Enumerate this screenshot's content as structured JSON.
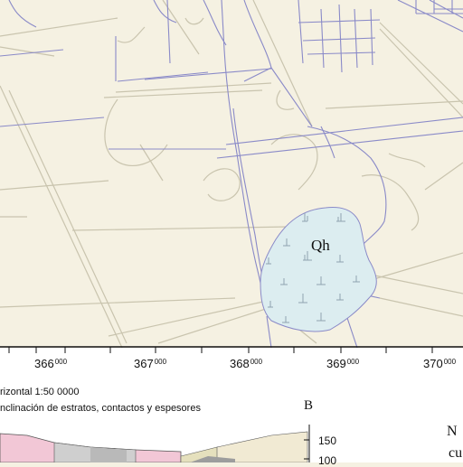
{
  "map": {
    "unit_label": "Qh",
    "easting_ticks": [
      {
        "major": "366",
        "minor": "000"
      },
      {
        "major": "367",
        "minor": "000"
      },
      {
        "major": "368",
        "minor": "000"
      },
      {
        "major": "369",
        "minor": "000"
      },
      {
        "major": "370",
        "minor": "000"
      }
    ],
    "colors": {
      "background": "#f5f1e2",
      "roads": "#8a8ac8",
      "grid": "#c9c4ae",
      "quaternary_fill": "#dcedf0",
      "quaternary_symbols": "#8fa3b0"
    }
  },
  "cross_section": {
    "scale_text": "rizontal 1:50 0000",
    "note_text": "nclinación de estratos, contactos y espesores",
    "panel_label": "B",
    "elevation_labels": [
      "150",
      "100"
    ],
    "side_text_1": "N",
    "side_text_2": "cu"
  }
}
